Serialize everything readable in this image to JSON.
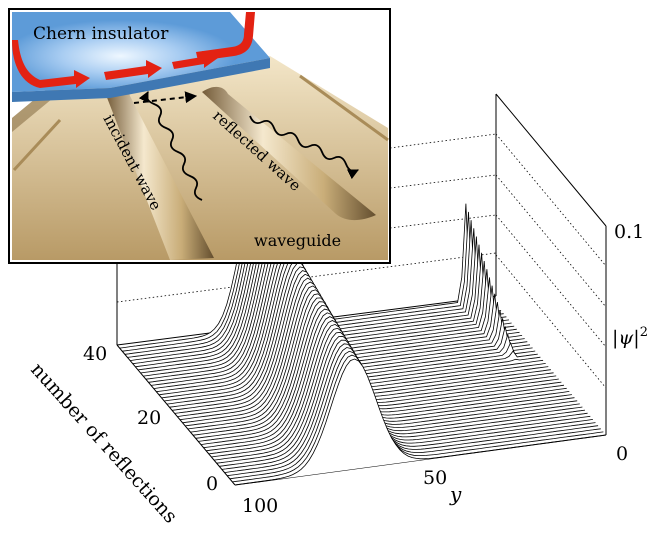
{
  "plot": {
    "z_tick_top": "0.1",
    "z_tick_bottom": "0",
    "z_axis_label": "|ψ|",
    "z_axis_label_sup": "2",
    "y_axis_label": "y",
    "y_tick_100": "100",
    "y_tick_50": "50",
    "r_axis_label": "number of reflections",
    "r_tick_0": "0",
    "r_tick_20": "20",
    "r_tick_40": "40",
    "trace_count": 45
  },
  "inset": {
    "title": "Chern insulator",
    "incident_label": "incident wave",
    "reflected_label": "reflected wave",
    "waveguide_label": "waveguide"
  },
  "colors": {
    "chern": "#5d9bd8",
    "chern_glow": "#cfe6ff",
    "edge_arrow": "#e32213",
    "waveguide": "#d8bf8e",
    "waveguide_dark": "#8b7248"
  }
}
